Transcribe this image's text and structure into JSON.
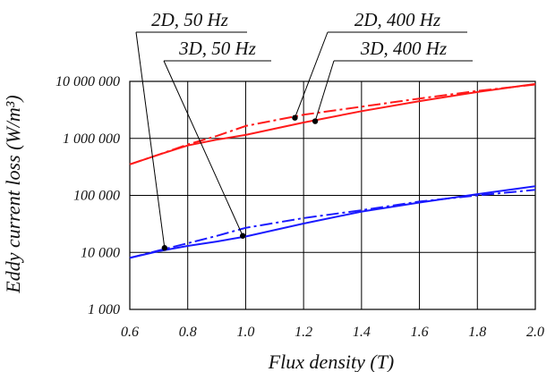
{
  "chart_data": {
    "type": "line",
    "title": "",
    "xlabel": "Flux density (T)",
    "ylabel": "Eddy current loss  (W/m³)",
    "xlim": [
      0.6,
      2.0
    ],
    "ylim": [
      1000,
      10000000
    ],
    "yscale": "log",
    "grid": true,
    "xticks": [
      "0.6",
      "0.8",
      "1.0",
      "1.2",
      "1.4",
      "1.6",
      "1.8",
      "2.0"
    ],
    "yticks": [
      "1 000",
      "10 000",
      "100 000",
      "1 000 000",
      "10 000 000"
    ],
    "series": [
      {
        "name": "2D, 50 Hz",
        "color": "#1a1aff",
        "style": "solid",
        "x": [
          0.6,
          0.7,
          0.8,
          0.9,
          1.0,
          1.2,
          1.4,
          1.6,
          1.8,
          2.0
        ],
        "y": [
          8000,
          10500,
          13000,
          15500,
          19000,
          32000,
          52000,
          75000,
          105000,
          145000
        ]
      },
      {
        "name": "3D, 50 Hz",
        "color": "#1a1aff",
        "style": "dashdot",
        "x": [
          0.6,
          0.7,
          0.8,
          0.9,
          1.0,
          1.2,
          1.4,
          1.6,
          1.8,
          2.0
        ],
        "y": [
          8000,
          10800,
          14500,
          19500,
          27000,
          40000,
          55000,
          78000,
          100000,
          125000
        ]
      },
      {
        "name": "2D, 400 Hz",
        "color": "#ff1a1a",
        "style": "solid",
        "x": [
          0.6,
          0.7,
          0.8,
          0.9,
          1.0,
          1.2,
          1.4,
          1.6,
          1.8,
          2.0
        ],
        "y": [
          350000,
          520000,
          750000,
          950000,
          1150000,
          1900000,
          3000000,
          4500000,
          6500000,
          9000000
        ]
      },
      {
        "name": "3D, 400 Hz",
        "color": "#ff1a1a",
        "style": "dashdot",
        "x": [
          0.6,
          0.7,
          0.8,
          0.9,
          1.0,
          1.2,
          1.4,
          1.6,
          1.8,
          2.0
        ],
        "y": [
          350000,
          520000,
          780000,
          1100000,
          1650000,
          2600000,
          3600000,
          5000000,
          6800000,
          8800000
        ]
      }
    ],
    "annotations": [
      {
        "text": "2D, 50 Hz",
        "x": 0.72,
        "y": 12000
      },
      {
        "text": "3D, 50 Hz",
        "x": 0.99,
        "y": 19500
      },
      {
        "text": "2D, 400 Hz",
        "x": 1.17,
        "y": 2300000
      },
      {
        "text": "3D, 400 Hz",
        "x": 1.24,
        "y": 2000000
      }
    ]
  }
}
